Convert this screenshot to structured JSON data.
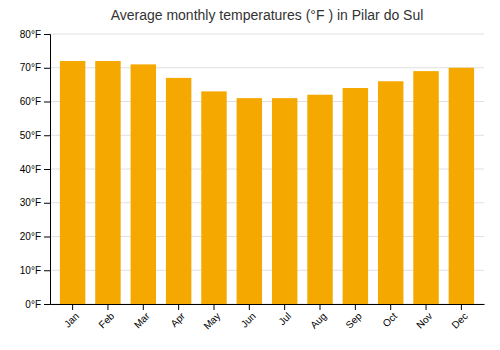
{
  "chart_data": {
    "type": "bar",
    "title": "Average monthly temperatures (°F ) in Pilar do Sul",
    "categories": [
      "Jan",
      "Feb",
      "Mar",
      "Apr",
      "May",
      "Jun",
      "Jul",
      "Aug",
      "Sep",
      "Oct",
      "Nov",
      "Dec"
    ],
    "values": [
      72,
      72,
      71,
      67,
      63,
      61,
      61,
      62,
      64,
      66,
      69,
      70
    ],
    "color": "#F5A800",
    "ylim": [
      0,
      80
    ],
    "yticks": [
      {
        "value": 0,
        "label": "0°F"
      },
      {
        "value": 10,
        "label": "10°F"
      },
      {
        "value": 20,
        "label": "20°F"
      },
      {
        "value": 30,
        "label": "30°F"
      },
      {
        "value": 40,
        "label": "40°F"
      },
      {
        "value": 50,
        "label": "50°F"
      },
      {
        "value": 60,
        "label": "60°F"
      },
      {
        "value": 70,
        "label": "70°F"
      },
      {
        "value": 80,
        "label": "80°F"
      }
    ],
    "grid": true
  }
}
